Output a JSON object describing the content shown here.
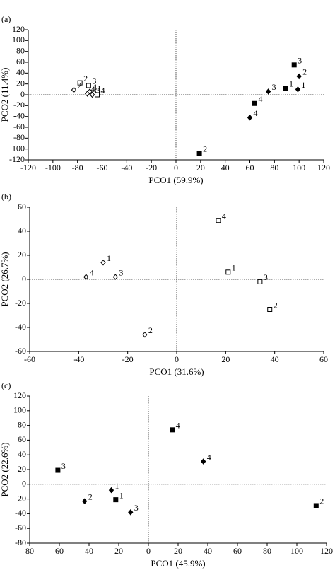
{
  "chart_data": [
    {
      "type": "scatter",
      "title": "(a)",
      "x_label": "PCO1 (59.9%)",
      "y_label": "PCO2 (11.4%)",
      "xlim": [
        -120,
        120
      ],
      "ylim": [
        -120,
        120
      ],
      "xticks": [
        -120,
        -100,
        -80,
        -60,
        -40,
        -20,
        0,
        20,
        40,
        60,
        80,
        100,
        120
      ],
      "yticks": [
        -120,
        -100,
        -80,
        -60,
        -40,
        -20,
        0,
        20,
        40,
        60,
        80,
        100,
        120
      ],
      "series": [
        {
          "marker": "square",
          "filled": true,
          "color": "#000",
          "x": [
            96,
            89,
            64,
            19
          ],
          "y": [
            55,
            12,
            -16,
            -108
          ],
          "labels": [
            "3",
            "1",
            "4",
            "2"
          ]
        },
        {
          "marker": "diamond",
          "filled": true,
          "color": "#000",
          "x": [
            75,
            100,
            99,
            60
          ],
          "y": [
            6,
            34,
            10,
            -42
          ],
          "labels": [
            "3",
            "2",
            "1",
            "4"
          ]
        },
        {
          "marker": "square",
          "filled": false,
          "color": "#000",
          "x": [
            -78,
            -71,
            -67,
            -64
          ],
          "y": [
            22,
            17,
            4,
            0
          ],
          "labels": [
            "2",
            "3",
            "1",
            "4"
          ]
        },
        {
          "marker": "diamond",
          "filled": false,
          "color": "#000",
          "x": [
            -83,
            -72,
            -70,
            -68
          ],
          "y": [
            9,
            2,
            6,
            0
          ],
          "labels": [
            "2",
            "4",
            "1",
            "3"
          ]
        }
      ]
    },
    {
      "type": "scatter",
      "title": "(b)",
      "x_label": "PCO1 (31.6%)",
      "y_label": "PCO2 (26.7%)",
      "xlim": [
        -60,
        60
      ],
      "ylim": [
        -60,
        60
      ],
      "xticks": [
        -60,
        -40,
        -20,
        0,
        20,
        40,
        60
      ],
      "yticks": [
        -60,
        -40,
        -20,
        0,
        20,
        40,
        60
      ],
      "series": [
        {
          "marker": "square",
          "filled": false,
          "color": "#000",
          "x": [
            17,
            21,
            34,
            38
          ],
          "y": [
            49,
            6,
            -2,
            -25
          ],
          "labels": [
            "4",
            "1",
            "3",
            "2"
          ]
        },
        {
          "marker": "diamond",
          "filled": false,
          "color": "#000",
          "x": [
            -37,
            -30,
            -25,
            -13
          ],
          "y": [
            2,
            14,
            2,
            -46
          ],
          "labels": [
            "4",
            "1",
            "3",
            "2"
          ]
        }
      ]
    },
    {
      "type": "scatter",
      "title": "(c)",
      "x_label": "PCO1 (45.9%)",
      "y_label": "PCO2 (22.6%)",
      "xlim": [
        -80,
        120
      ],
      "ylim": [
        -80,
        120
      ],
      "xticks": [
        {
          "value": -80,
          "label": "80"
        },
        {
          "value": -60,
          "label": "60"
        },
        {
          "value": -40,
          "label": "40"
        },
        {
          "value": -20,
          "label": "20"
        },
        0,
        20,
        40,
        60,
        80,
        100,
        120
      ],
      "yticks": [
        -80,
        -60,
        -40,
        -20,
        0,
        20,
        40,
        60,
        80,
        100,
        120
      ],
      "series": [
        {
          "marker": "square",
          "filled": true,
          "color": "#000",
          "x": [
            16,
            -61,
            -22,
            113
          ],
          "y": [
            74,
            19,
            -21,
            -29
          ],
          "labels": [
            "4",
            "3",
            "1",
            "2"
          ]
        },
        {
          "marker": "diamond",
          "filled": true,
          "color": "#000",
          "x": [
            37,
            -25,
            -43,
            -12
          ],
          "y": [
            31,
            -8,
            -23,
            -38
          ],
          "labels": [
            "4",
            "1",
            "2",
            "3"
          ]
        }
      ]
    }
  ]
}
